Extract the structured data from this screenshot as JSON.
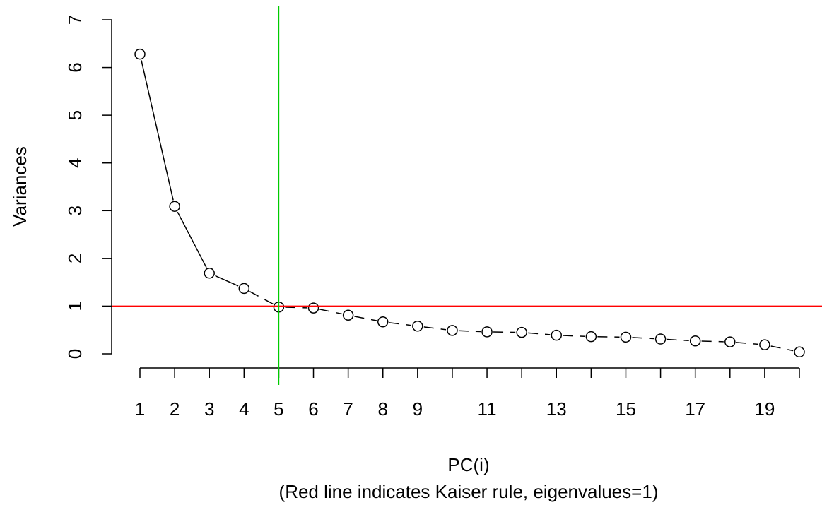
{
  "chart_data": {
    "type": "line",
    "xlabel": "PC(i)",
    "subtitle": "(Red line indicates Kaiser rule, eigenvalues=1)",
    "ylabel": "Variances",
    "x": [
      1,
      2,
      3,
      4,
      5,
      6,
      7,
      8,
      9,
      10,
      11,
      12,
      13,
      14,
      15,
      16,
      17,
      18,
      19,
      20
    ],
    "values": [
      6.28,
      3.09,
      1.69,
      1.37,
      0.98,
      0.96,
      0.81,
      0.67,
      0.58,
      0.49,
      0.46,
      0.45,
      0.39,
      0.36,
      0.35,
      0.31,
      0.27,
      0.25,
      0.19,
      0.04
    ],
    "xlim": [
      1,
      20
    ],
    "ylim": [
      0,
      7
    ],
    "x_ticks": [
      1,
      2,
      3,
      4,
      5,
      6,
      7,
      8,
      9,
      10,
      11,
      12,
      13,
      14,
      15,
      16,
      17,
      18,
      19,
      20
    ],
    "x_tick_labels": [
      "1",
      "2",
      "3",
      "4",
      "5",
      "6",
      "7",
      "8",
      "9",
      "",
      "11",
      "",
      "13",
      "",
      "15",
      "",
      "17",
      "",
      "19",
      ""
    ],
    "y_ticks": [
      0,
      1,
      2,
      3,
      4,
      5,
      6,
      7
    ],
    "hline": {
      "y": 1,
      "color": "#ff0000"
    },
    "vline": {
      "x": 5,
      "color": "#00cc00"
    },
    "line_style": {
      "solid_until_index": 3,
      "dashed_after": true
    },
    "marker": "open-circle",
    "grid": false
  }
}
